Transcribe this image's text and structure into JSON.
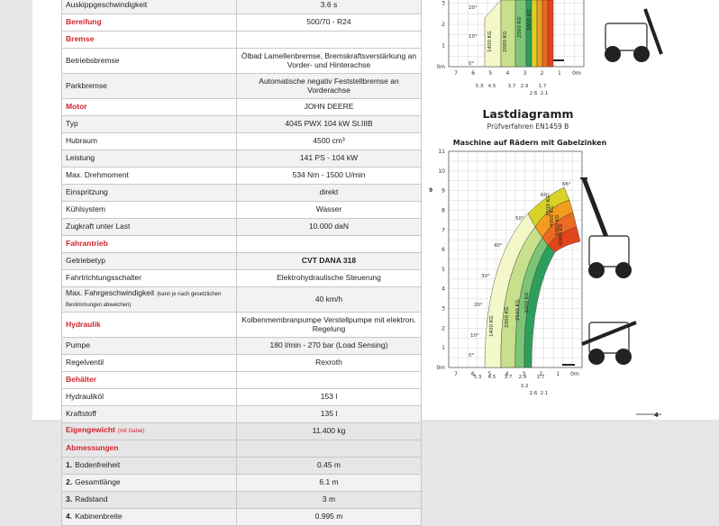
{
  "specs": {
    "rows": [
      {
        "type": "row",
        "label": "Auskippgeschwindigkeit",
        "value": "3.6 s"
      },
      {
        "type": "section",
        "label": "Bereifung",
        "value": "500/70 - R24"
      },
      {
        "type": "section",
        "label": "Bremse",
        "value": ""
      },
      {
        "type": "row",
        "label": "Betriebsbremse",
        "value": "Ölbad Lamellenbremse, Bremskraftsverstärkung an Vorder- und Hinterachse",
        "tall": true
      },
      {
        "type": "row",
        "label": "Parkbremse",
        "value": "Automatische negativ Feststellbremse an Vorderachse",
        "tall": true
      },
      {
        "type": "section",
        "label": "Motor",
        "value": "JOHN DEERE"
      },
      {
        "type": "row",
        "label": "Typ",
        "value": "4045 PWX 104 kW St.IIIB"
      },
      {
        "type": "row",
        "label": "Hubraum",
        "value": "4500 cm³"
      },
      {
        "type": "row",
        "label": "Leistung",
        "value": "141 PS - 104 kW"
      },
      {
        "type": "row",
        "label": "Max. Drehmoment",
        "value": "534 Nm - 1500 U/min"
      },
      {
        "type": "row",
        "label": "Einspritzung",
        "value": "direkt"
      },
      {
        "type": "row",
        "label": "Kühlsystem",
        "value": "Wasser"
      },
      {
        "type": "row",
        "label": "Zugkraft unter Last",
        "value": "10.000 daN"
      },
      {
        "type": "section",
        "label": "Fahrantrieb",
        "value": ""
      },
      {
        "type": "row",
        "label": "Getriebetyp",
        "value": "CVT DANA 318",
        "bold": true
      },
      {
        "type": "row",
        "label": "Fahrtrichtungsschalter",
        "value": "Elektrohydraulische Steuerung"
      },
      {
        "type": "row",
        "label": "Max. Fahrgeschwindigkeit",
        "note": "(kann je nach gesetzlichen Bestimmungen abweichen)",
        "value": "40 km/h",
        "tall": true
      },
      {
        "type": "section",
        "label": "Hydraulik",
        "value": "Kolbenmembranpumpe Verstellpumpe mit elektron. Regelung",
        "tall": true
      },
      {
        "type": "row",
        "label": "Pumpe",
        "value": "180 l/min - 270 bar (Load Sensing)"
      },
      {
        "type": "row",
        "label": "Regelventil",
        "value": "Rexroth"
      },
      {
        "type": "section",
        "label": "Behälter",
        "value": ""
      },
      {
        "type": "row",
        "label": "Hydrauliköl",
        "value": "153 l"
      },
      {
        "type": "row",
        "label": "Kraftstoff",
        "value": "135 l"
      },
      {
        "type": "section",
        "label": "Eigengewicht",
        "note": "(mit Gabel)",
        "value": "11.400 kg"
      },
      {
        "type": "section",
        "label": "Abmessungen",
        "value": ""
      },
      {
        "type": "row",
        "num": "1.",
        "label": "Bodenfreiheit",
        "value": "0.45 m"
      },
      {
        "type": "row",
        "num": "2.",
        "label": "Gesamtlänge",
        "value": "6.1 m"
      },
      {
        "type": "row",
        "num": "3.",
        "label": "Radstand",
        "value": "3 m"
      },
      {
        "type": "row",
        "num": "4.",
        "label": "Kabinenbreite",
        "value": "0.995 m"
      }
    ]
  },
  "top_chart": {
    "y_ticks": [
      "3",
      "2",
      "1",
      "0m"
    ],
    "x_ticks": [
      "7",
      "6",
      "5",
      "4",
      "3",
      "2",
      "1",
      "0m"
    ],
    "radius_labels": [
      "5.3",
      "4.5",
      "3.7",
      "2.9",
      "1.7",
      "2.6",
      "2.1"
    ],
    "angles": [
      "10°",
      "0°",
      "20°"
    ],
    "zone_labels": [
      "1400 KG",
      "2000 KG",
      "2500 KG",
      "3000 KG"
    ]
  },
  "bottom_chart": {
    "title": "Lastdiagramm",
    "subtitle": "Prüfverfahren EN1459 B",
    "heading": "Maschine auf Rädern mit Gabelzinken",
    "y_ticks": [
      "11",
      "10",
      "9",
      "8",
      "7",
      "6",
      "5",
      "4",
      "3",
      "2",
      "1",
      "0m"
    ],
    "x_ticks": [
      "7",
      "6",
      "5",
      "4",
      "3",
      "2",
      "1",
      "0m"
    ],
    "radius_labels": [
      "5.3",
      "4.5",
      "3.7",
      "2.9",
      "1.7",
      "3.2",
      "2.6",
      "2.1"
    ],
    "angles": [
      "66°",
      "60°",
      "50°",
      "40°",
      "30°",
      "20°",
      "10°",
      "0°"
    ],
    "zone_labels": [
      "1400 KG",
      "2000 KG",
      "2500 KG",
      "3000 KG",
      "3500 KG",
      "4000 KG",
      "5000 KG",
      "6000 KG"
    ],
    "row_marker": "9"
  },
  "footer": {
    "page_mark": "4"
  },
  "colors": {
    "accent_red": "#d2232a",
    "zone_colors": [
      "#f4f8c8",
      "#c6e08c",
      "#7cc576",
      "#2e9e5c",
      "#d9d226",
      "#f39c1f",
      "#eb6a24",
      "#e2451c"
    ]
  }
}
